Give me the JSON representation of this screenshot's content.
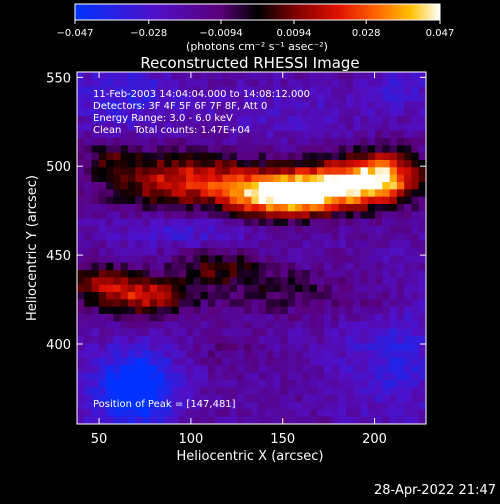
{
  "chart_data": {
    "type": "heatmap",
    "title": "Reconstructed RHESSI Image",
    "xlabel": "Heliocentric X (arcsec)",
    "ylabel": "Heliocentric Y (arcsec)",
    "xlim": [
      38,
      228
    ],
    "ylim": [
      355,
      553
    ],
    "x_ticks": [
      50,
      100,
      150,
      200
    ],
    "y_ticks": [
      400,
      450,
      500,
      550
    ],
    "colorbar": {
      "range": [
        -0.047,
        0.047
      ],
      "tick_values": [
        -0.047,
        -0.028,
        -0.0094,
        0.0094,
        0.028,
        0.047
      ],
      "tick_labels": [
        "−0.047",
        "−0.028",
        "−0.0094",
        "0.0094",
        "0.028",
        "0.047"
      ],
      "units": "(photons cm⁻² s⁻¹ asec⁻²)"
    },
    "annotations": [
      "11-Feb-2003 14:04:04.000 to 14:08:12.000",
      "Detectors: 3F 4F 5F 6F 7F 8F, Att 0",
      "Energy Range: 3.0 - 6.0 keV",
      "Clean    Total counts: 1.47E+04"
    ],
    "peak_label": "Position of Peak = [147,481]",
    "peak": [
      147,
      481
    ],
    "sources": [
      {
        "x": 150,
        "y": 483,
        "sx": 22,
        "sy": 8,
        "amp": 0.06
      },
      {
        "x": 180,
        "y": 490,
        "sx": 24,
        "sy": 9,
        "amp": 0.048
      },
      {
        "x": 205,
        "y": 495,
        "sx": 14,
        "sy": 10,
        "amp": 0.04
      },
      {
        "x": 110,
        "y": 493,
        "sx": 22,
        "sy": 10,
        "amp": 0.032
      },
      {
        "x": 75,
        "y": 492,
        "sx": 18,
        "sy": 11,
        "amp": 0.022
      },
      {
        "x": 55,
        "y": 505,
        "sx": 10,
        "sy": 8,
        "amp": 0.014
      },
      {
        "x": 75,
        "y": 427,
        "sx": 18,
        "sy": 8,
        "amp": 0.034
      },
      {
        "x": 50,
        "y": 435,
        "sx": 14,
        "sy": 8,
        "amp": 0.022
      },
      {
        "x": 115,
        "y": 443,
        "sx": 16,
        "sy": 7,
        "amp": 0.02
      },
      {
        "x": 150,
        "y": 430,
        "sx": 26,
        "sy": 9,
        "amp": 0.014
      },
      {
        "x": 200,
        "y": 422,
        "sx": 14,
        "sy": 8,
        "amp": 0.01
      },
      {
        "x": 120,
        "y": 395,
        "sx": 14,
        "sy": 6,
        "amp": 0.006
      },
      {
        "x": 150,
        "y": 530,
        "sx": 30,
        "sy": 10,
        "amp": -0.008
      },
      {
        "x": 70,
        "y": 375,
        "sx": 16,
        "sy": 15,
        "amp": -0.04
      },
      {
        "x": 210,
        "y": 395,
        "sx": 20,
        "sy": 25,
        "amp": -0.016
      },
      {
        "x": 215,
        "y": 545,
        "sx": 15,
        "sy": 10,
        "amp": -0.012
      },
      {
        "x": 65,
        "y": 540,
        "sx": 20,
        "sy": 14,
        "amp": -0.016
      },
      {
        "x": 95,
        "y": 463,
        "sx": 25,
        "sy": 6,
        "amp": -0.012
      }
    ]
  },
  "footer": {
    "timestamp": "28-Apr-2022 21:47"
  }
}
